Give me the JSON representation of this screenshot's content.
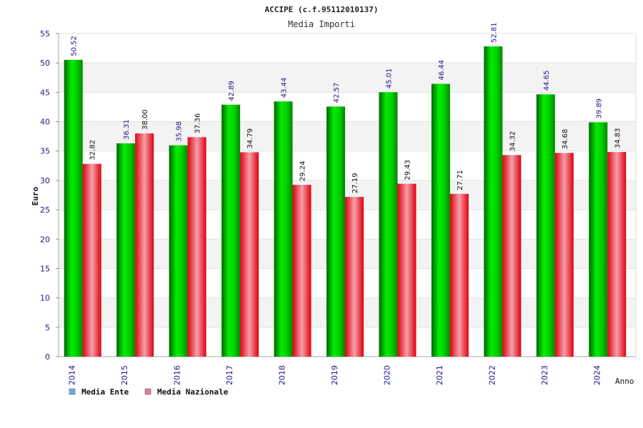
{
  "chart_data": {
    "type": "bar",
    "title": "ACCIPE (c.f.95112010137)",
    "subtitle": "Media Importi",
    "xlabel": "Anno",
    "ylabel": "Euro",
    "ylim": [
      0,
      55
    ],
    "yticks": [
      0,
      5,
      10,
      15,
      20,
      25,
      30,
      35,
      40,
      45,
      50,
      55
    ],
    "grid": true,
    "legend_position": "bottom-left",
    "categories": [
      "2014",
      "2015",
      "2016",
      "2017",
      "2018",
      "2019",
      "2020",
      "2021",
      "2022",
      "2023",
      "2024"
    ],
    "series": [
      {
        "name": "Media Ente",
        "color": "#00cc00",
        "legend_color": "#6fa8ea",
        "values": [
          50.52,
          36.31,
          35.98,
          42.89,
          43.44,
          42.57,
          45.01,
          46.44,
          52.81,
          44.65,
          39.89
        ],
        "labels": [
          "50.52",
          "36.31",
          "35.98",
          "42.89",
          "43.44",
          "42.57",
          "45.01",
          "46.44",
          "52.81",
          "44.65",
          "39.89"
        ]
      },
      {
        "name": "Media Nazionale",
        "color": "#ee1122",
        "legend_color": "#e07aa8",
        "values": [
          32.82,
          38.0,
          37.36,
          34.79,
          29.24,
          27.19,
          29.43,
          27.71,
          34.32,
          34.68,
          34.83
        ],
        "labels": [
          "32.82",
          "38.00",
          "37.36",
          "34.79",
          "29.24",
          "27.19",
          "29.43",
          "27.71",
          "34.32",
          "34.68",
          "34.83"
        ]
      }
    ]
  }
}
